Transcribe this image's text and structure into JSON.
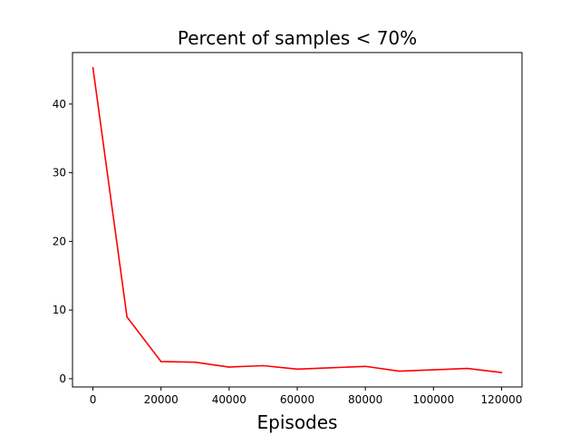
{
  "chart_data": {
    "type": "line",
    "title": "Percent of samples < 70%",
    "xlabel": "Episodes",
    "ylabel": "",
    "xlim": [
      -6000,
      126000
    ],
    "ylim": [
      -1.2,
      47.5
    ],
    "xticks": [
      0,
      20000,
      40000,
      60000,
      80000,
      100000,
      120000
    ],
    "yticks": [
      0,
      10,
      20,
      30,
      40
    ],
    "grid": false,
    "legend": "none",
    "series": [
      {
        "color": "#ff0000",
        "x": [
          0,
          10000,
          20000,
          30000,
          40000,
          50000,
          60000,
          70000,
          80000,
          90000,
          100000,
          110000,
          120000
        ],
        "y": [
          45.3,
          9.0,
          2.5,
          2.4,
          1.7,
          1.9,
          1.4,
          1.6,
          1.8,
          1.1,
          1.3,
          1.5,
          0.9
        ]
      }
    ]
  }
}
